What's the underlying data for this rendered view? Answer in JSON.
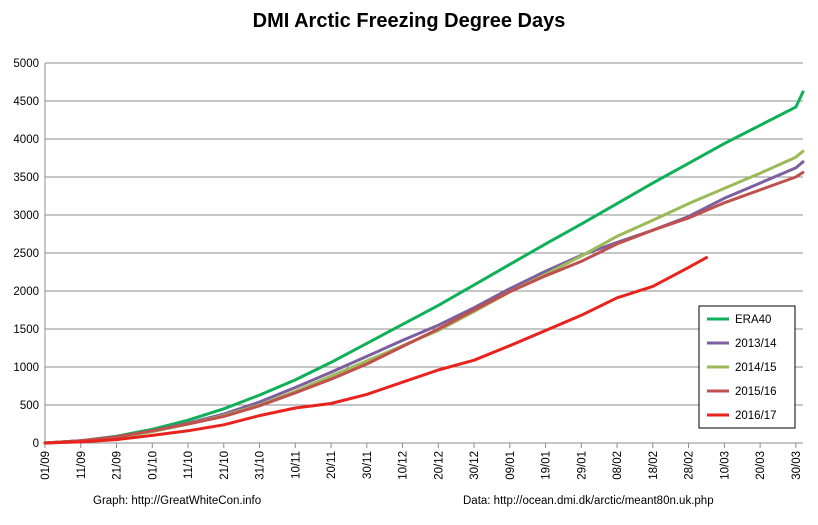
{
  "chart_data": {
    "type": "line",
    "title": "DMI Arctic Freezing Degree Days",
    "xlabel": "",
    "ylabel": "",
    "ylim": [
      0,
      5000
    ],
    "yticks": [
      0,
      500,
      1000,
      1500,
      2000,
      2500,
      3000,
      3500,
      4000,
      4500,
      5000
    ],
    "x_tick_labels": [
      "01/09",
      "11/09",
      "21/09",
      "01/10",
      "11/10",
      "21/10",
      "31/10",
      "10/11",
      "20/11",
      "30/11",
      "10/12",
      "20/12",
      "30/12",
      "09/01",
      "19/01",
      "29/01",
      "08/02",
      "18/02",
      "28/02",
      "10/03",
      "20/03",
      "30/03"
    ],
    "x_unit": "day since 01/09",
    "xlim": [
      0,
      212
    ],
    "grid": "horizontal",
    "legend_position": "right",
    "series": [
      {
        "name": "ERA40",
        "color": "#10b058",
        "x": [
          0,
          10,
          20,
          30,
          40,
          50,
          60,
          70,
          80,
          90,
          100,
          110,
          120,
          130,
          140,
          150,
          160,
          170,
          180,
          190,
          200,
          210,
          212
        ],
        "values": [
          0,
          30,
          90,
          180,
          300,
          450,
          630,
          830,
          1060,
          1310,
          1560,
          1810,
          2080,
          2350,
          2620,
          2880,
          3150,
          3420,
          3680,
          3940,
          4180,
          4420,
          4620
        ]
      },
      {
        "name": "2013/14",
        "color": "#7d5fa0",
        "x": [
          0,
          10,
          20,
          30,
          40,
          50,
          60,
          70,
          80,
          90,
          100,
          110,
          120,
          130,
          140,
          150,
          160,
          170,
          180,
          190,
          200,
          210,
          212
        ],
        "values": [
          0,
          30,
          80,
          160,
          260,
          380,
          540,
          730,
          930,
          1140,
          1350,
          1550,
          1780,
          2030,
          2260,
          2470,
          2640,
          2800,
          2980,
          3220,
          3420,
          3620,
          3700
        ]
      },
      {
        "name": "2014/15",
        "color": "#9bbb59",
        "x": [
          0,
          10,
          20,
          30,
          40,
          50,
          60,
          70,
          80,
          90,
          100,
          110,
          120,
          130,
          140,
          150,
          160,
          170,
          180,
          190,
          200,
          210,
          212
        ],
        "values": [
          0,
          25,
          70,
          150,
          250,
          360,
          500,
          680,
          880,
          1080,
          1280,
          1480,
          1730,
          1990,
          2220,
          2460,
          2720,
          2930,
          3150,
          3350,
          3550,
          3760,
          3840
        ]
      },
      {
        "name": "2015/16",
        "color": "#c0504d",
        "x": [
          0,
          10,
          20,
          30,
          40,
          50,
          60,
          70,
          80,
          90,
          100,
          110,
          120,
          130,
          140,
          150,
          160,
          170,
          180,
          190,
          200,
          210,
          212
        ],
        "values": [
          0,
          30,
          80,
          160,
          250,
          350,
          490,
          660,
          840,
          1040,
          1270,
          1500,
          1750,
          1990,
          2200,
          2390,
          2620,
          2800,
          2960,
          3160,
          3330,
          3500,
          3560
        ]
      },
      {
        "name": "2016/17",
        "color": "#e8231e",
        "x": [
          0,
          10,
          20,
          30,
          40,
          50,
          60,
          70,
          80,
          90,
          100,
          110,
          120,
          130,
          140,
          150,
          160,
          170,
          180,
          185
        ],
        "values": [
          0,
          15,
          45,
          100,
          160,
          240,
          360,
          460,
          520,
          640,
          800,
          960,
          1090,
          1280,
          1480,
          1680,
          1910,
          2060,
          2310,
          2440
        ]
      }
    ]
  },
  "footer": {
    "left": "Graph: http://GreatWhiteCon.info",
    "right": "Data: http://ocean.dmi.dk/arctic/meant80n.uk.php"
  }
}
